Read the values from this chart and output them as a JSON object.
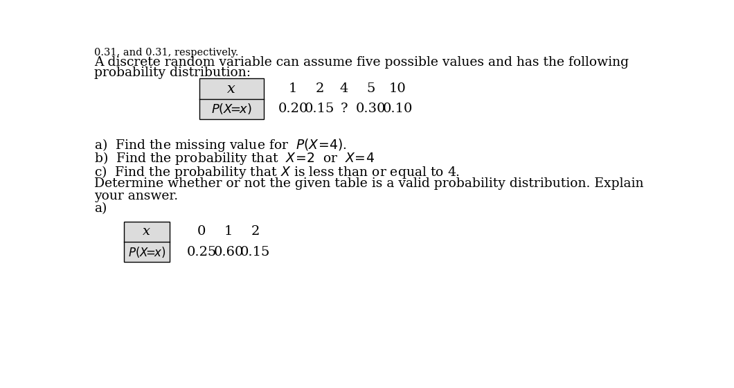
{
  "top_partial": "0.31, and 0.31, respectively.",
  "top_text_line1": "A discrete random variable can assume five possible values and has the following",
  "top_text_line2": "probability distribution:",
  "table1_x_vals": [
    "1",
    "2",
    "4",
    "5",
    "10"
  ],
  "table1_p_vals": [
    "0.20",
    "0.15",
    "?",
    "0.30",
    "0.10"
  ],
  "q1": "a)  Find the missing value for  P(X=4).",
  "q2_a": "b)  Find the probability that  X=2  or  X=4",
  "q2_b": "c)  Find the probability that X is less than or equal to 4.",
  "q3a": "Determine whether or not the given table is a valid probability distribution. Explain",
  "q3b": "your answer.",
  "q3c": "a)",
  "table2_x_vals": [
    "0",
    "1",
    "2"
  ],
  "table2_p_vals": [
    "0.25",
    "0.60",
    "0.15"
  ],
  "bg_color": "#ffffff",
  "text_color": "#000000",
  "shaded_cell_color": "#dcdcdc"
}
